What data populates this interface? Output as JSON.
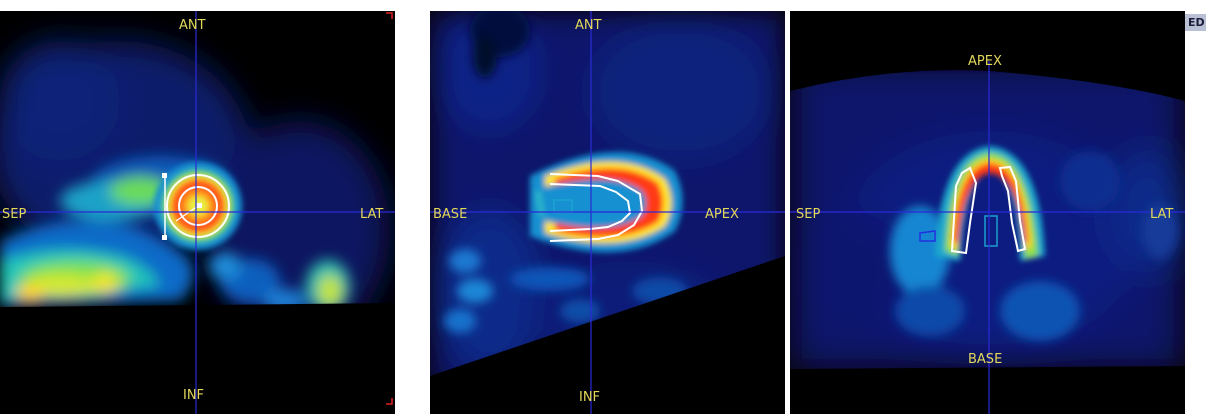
{
  "views": {
    "short_axis": {
      "top": "ANT",
      "bottom": "INF",
      "left": "SEP",
      "right": "LAT"
    },
    "horizontal_long_axis": {
      "top": "ANT",
      "bottom": "INF",
      "left": "BASE",
      "right": "APEX"
    },
    "vertical_long_axis": {
      "top": "APEX",
      "bottom": "BASE",
      "left": "SEP",
      "right": "LAT"
    }
  },
  "corner_badge": "ED",
  "colors": {
    "crosshair": "#2a2ad8",
    "label": "#e3d85a",
    "contour": "#ffffff",
    "roi": "#1aa0d0",
    "active_view_marker": "#e02020"
  }
}
